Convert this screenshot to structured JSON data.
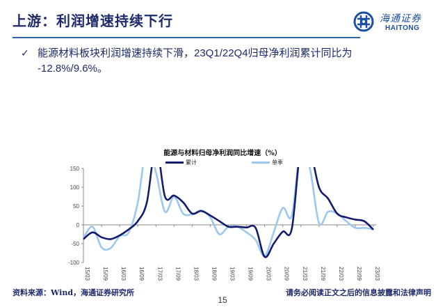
{
  "header": {
    "title": "上游：利润增速持续下行",
    "logo_cn": "海通证券",
    "logo_en": "HAITONG"
  },
  "bullet": {
    "icon": "check-icon",
    "line1": "能源材料板块利润增速持续下滑，23Q1/22Q4归母净利润累计同比为",
    "line2": "-12.8%/9.6%。"
  },
  "colors": {
    "title": "#1d2a6b",
    "rule": "#2e63b0",
    "series_cumulative": "#141b6e",
    "series_quarterly": "#9cc8ef",
    "axis": "#8a8a8a"
  },
  "chart_data": {
    "type": "line",
    "title": "能源与材料归母净利润同比增速（%）",
    "xlabel": "",
    "ylabel": "",
    "ylim": [
      -100,
      150
    ],
    "yticks": [
      150,
      100,
      50,
      0,
      -50,
      -100
    ],
    "grid": false,
    "legend_position": "top",
    "x_tick_labels": [
      "15/03",
      "15/09",
      "16/03",
      "16/09",
      "17/03",
      "17/09",
      "18/03",
      "18/09",
      "19/03",
      "19/09",
      "20/03",
      "20/09",
      "21/03",
      "21/09",
      "22/03",
      "22/09",
      "23/03"
    ],
    "x": [
      "15Q1",
      "15Q2",
      "15Q3",
      "15Q4",
      "16Q1",
      "16Q2",
      "16Q3",
      "16Q4",
      "17Q1",
      "17Q2",
      "17Q3",
      "17Q4",
      "18Q1",
      "18Q2",
      "18Q3",
      "18Q4",
      "19Q1",
      "19Q2",
      "19Q3",
      "19Q4",
      "20Q1",
      "20Q2",
      "20Q3",
      "20Q4",
      "21Q1",
      "21Q2",
      "21Q3",
      "21Q4",
      "22Q1",
      "22Q2",
      "22Q3",
      "22Q4",
      "23Q1"
    ],
    "series": [
      {
        "name": "累计",
        "values": [
          -38,
          -20,
          -33,
          -38,
          -28,
          -12,
          10,
          60,
          400,
          75,
          78,
          60,
          30,
          37,
          25,
          10,
          -5,
          -5,
          -7,
          -8,
          -85,
          -50,
          -18,
          -10,
          400,
          200,
          100,
          70,
          30,
          20,
          14,
          9.6,
          -12.8
        ]
      },
      {
        "name": "单季",
        "values": [
          -35,
          -5,
          -60,
          -62,
          -30,
          -20,
          60,
          400,
          140,
          35,
          75,
          30,
          28,
          38,
          20,
          -25,
          -5,
          -5,
          -20,
          -40,
          -83,
          -20,
          45,
          25,
          400,
          150,
          5,
          35,
          30,
          10,
          -8,
          -8,
          -12
        ]
      }
    ]
  },
  "footer": {
    "source": "资料来源：Wind，海通证券研究所",
    "disclaimer": "请务必阅读正文之后的信息披露和法律声明",
    "page": "15"
  }
}
